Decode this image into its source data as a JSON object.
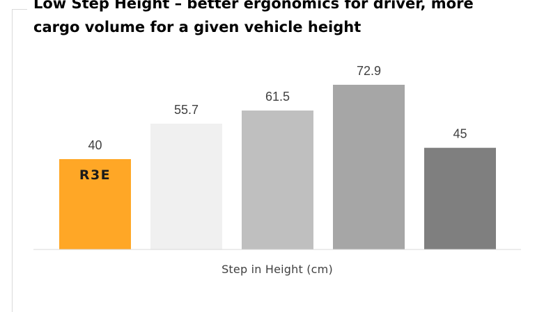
{
  "title_lines": [
    "Low Step Height – better ergonomics for driver, more",
    "cargo volume for a given vehicle height"
  ],
  "chart_data": {
    "type": "bar",
    "title": "Low Step Height – better ergonomics for driver, more cargo volume for a given vehicle height",
    "xlabel": "Step in Height (cm)",
    "ylabel": "",
    "ylim": [
      0,
      80
    ],
    "grid": false,
    "categories": [
      "R3E",
      "",
      "",
      "",
      ""
    ],
    "values": [
      40,
      55.7,
      61.5,
      72.9,
      45
    ],
    "data_labels": [
      "40",
      "55.7",
      "61.5",
      "72.9",
      "45"
    ],
    "colors": [
      "#FFA726",
      "#F0F0F0",
      "#BFBFBF",
      "#A6A6A6",
      "#7F7F7F"
    ],
    "logo_text": "R3E"
  }
}
